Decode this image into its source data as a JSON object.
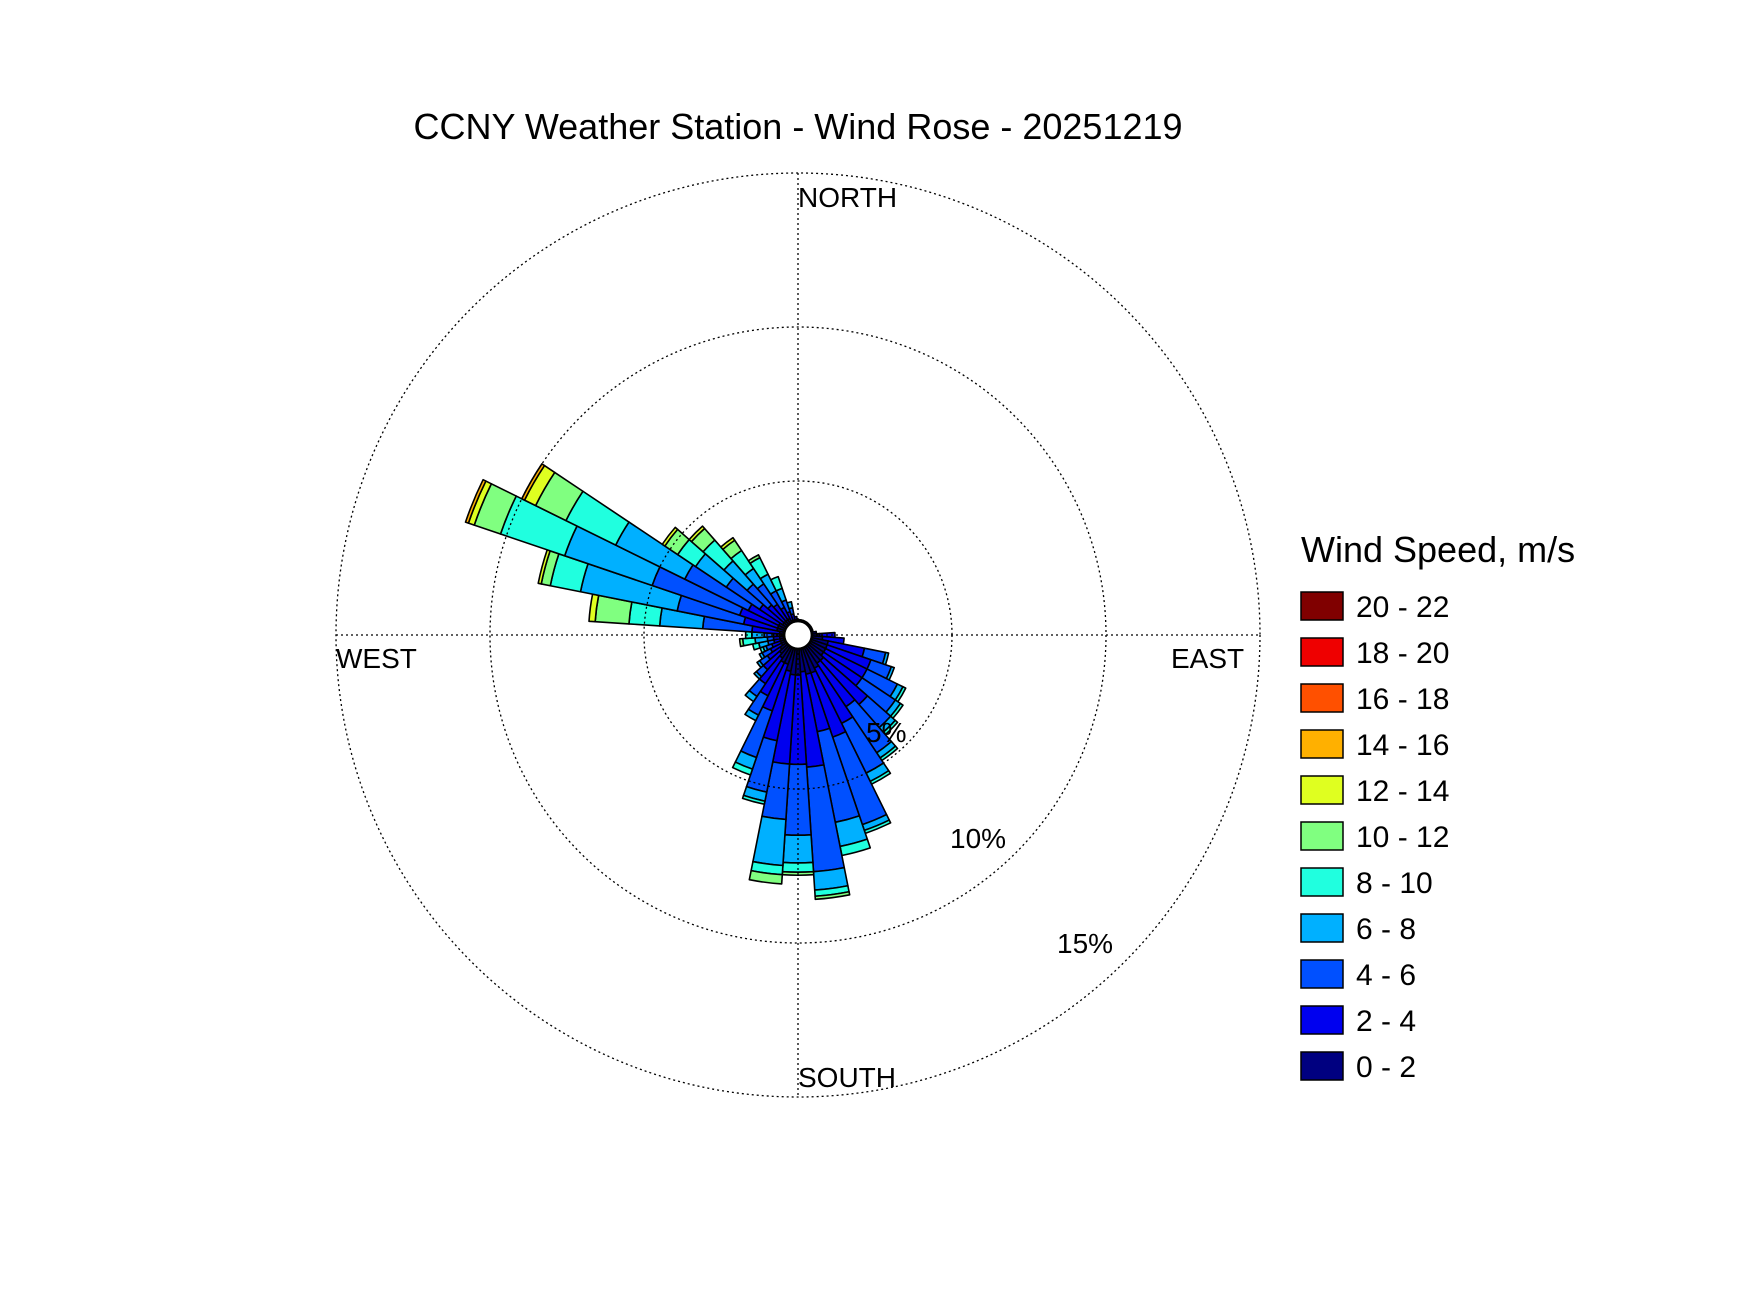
{
  "chart_data": {
    "type": "wind-rose",
    "title": "CCNY Weather Station - Wind Rose - 20251219",
    "directions": [
      "NORTH",
      "EAST",
      "SOUTH",
      "WEST"
    ],
    "radial_rings": [
      5,
      10,
      15
    ],
    "radial_ring_labels": [
      "5%",
      "10%",
      "15%"
    ],
    "radial_max": 15,
    "radial_units": "%",
    "grid": true,
    "legend_title": "Wind Speed, m/s",
    "legend_position": "right",
    "speed_bins": [
      {
        "label": "20 - 22",
        "color": "#800000"
      },
      {
        "label": "18 - 20",
        "color": "#ef0000"
      },
      {
        "label": "16 - 18",
        "color": "#ff5000"
      },
      {
        "label": "14 - 16",
        "color": "#ffb000"
      },
      {
        "label": "12 - 14",
        "color": "#dfff20"
      },
      {
        "label": "10 - 12",
        "color": "#80ff80"
      },
      {
        "label": "8 - 10",
        "color": "#20ffdf"
      },
      {
        "label": "6 - 8",
        "color": "#00b0ff"
      },
      {
        "label": "4 - 6",
        "color": "#0050ff"
      },
      {
        "label": "2 - 4",
        "color": "#0000ef"
      },
      {
        "label": "0 - 2",
        "color": "#000080"
      }
    ],
    "sector_width_deg": 7.5,
    "sectors": [
      {
        "direction_deg": 0,
        "cumulative_pct": [
          0.5
        ]
      },
      {
        "direction_deg": 7.5,
        "cumulative_pct": [
          0.5
        ]
      },
      {
        "direction_deg": 15,
        "cumulative_pct": [
          0.5
        ]
      },
      {
        "direction_deg": 22.5,
        "cumulative_pct": [
          0.5
        ]
      },
      {
        "direction_deg": 30,
        "cumulative_pct": [
          0.5
        ]
      },
      {
        "direction_deg": 37.5,
        "cumulative_pct": [
          0.5
        ]
      },
      {
        "direction_deg": 45,
        "cumulative_pct": [
          0.5
        ]
      },
      {
        "direction_deg": 52.5,
        "cumulative_pct": [
          0.5
        ]
      },
      {
        "direction_deg": 60,
        "cumulative_pct": [
          0.5
        ]
      },
      {
        "direction_deg": 67.5,
        "cumulative_pct": [
          0.5
        ]
      },
      {
        "direction_deg": 75,
        "cumulative_pct": [
          0.5
        ]
      },
      {
        "direction_deg": 82.5,
        "cumulative_pct": [
          0.6
        ]
      },
      {
        "direction_deg": 90,
        "cumulative_pct": [
          0.7,
          1.2
        ]
      },
      {
        "direction_deg": 97.5,
        "cumulative_pct": [
          0.8,
          1.5
        ]
      },
      {
        "direction_deg": 105,
        "cumulative_pct": [
          1.0,
          2.2,
          2.9,
          3.0
        ]
      },
      {
        "direction_deg": 112.5,
        "cumulative_pct": [
          1.0,
          2.5,
          3.2,
          3.3
        ]
      },
      {
        "direction_deg": 120,
        "cumulative_pct": [
          1.0,
          2.5,
          3.6,
          3.8,
          3.9
        ]
      },
      {
        "direction_deg": 127.5,
        "cumulative_pct": [
          1.0,
          2.5,
          3.8,
          4.0,
          4.1
        ]
      },
      {
        "direction_deg": 135,
        "cumulative_pct": [
          1.1,
          3.0,
          4.0,
          4.2,
          4.3
        ]
      },
      {
        "direction_deg": 142.5,
        "cumulative_pct": [
          1.1,
          2.8,
          4.6,
          4.8,
          4.9
        ]
      },
      {
        "direction_deg": 150,
        "cumulative_pct": [
          1.2,
          3.2,
          5.0,
          5.3,
          5.4
        ]
      },
      {
        "direction_deg": 157.5,
        "cumulative_pct": [
          1.3,
          3.5,
          6.5,
          6.7,
          6.8
        ]
      },
      {
        "direction_deg": 165,
        "cumulative_pct": [
          1.3,
          3.2,
          6.2,
          7.0,
          7.3
        ]
      },
      {
        "direction_deg": 172.5,
        "cumulative_pct": [
          1.2,
          4.3,
          7.7,
          8.3,
          8.5,
          8.6
        ]
      },
      {
        "direction_deg": 180,
        "cumulative_pct": [
          1.3,
          4.2,
          6.5,
          7.4,
          7.7,
          7.8
        ]
      },
      {
        "direction_deg": 187.5,
        "cumulative_pct": [
          1.3,
          4.2,
          6.0,
          7.5,
          7.8,
          8.1
        ]
      },
      {
        "direction_deg": 195,
        "cumulative_pct": [
          1.2,
          3.5,
          5.2,
          5.5,
          5.6
        ]
      },
      {
        "direction_deg": 202.5,
        "cumulative_pct": [
          1.0,
          2.6,
          4.2,
          4.6,
          4.8
        ]
      },
      {
        "direction_deg": 210,
        "cumulative_pct": [
          1.0,
          2.2,
          2.9,
          3.1
        ]
      },
      {
        "direction_deg": 217.5,
        "cumulative_pct": [
          0.9,
          1.9,
          2.4,
          2.6
        ]
      },
      {
        "direction_deg": 225,
        "cumulative_pct": [
          0.8,
          1.5,
          1.8,
          1.9
        ]
      },
      {
        "direction_deg": 232.5,
        "cumulative_pct": [
          0.7,
          1.2,
          1.5,
          1.6
        ]
      },
      {
        "direction_deg": 240,
        "cumulative_pct": [
          0.6,
          1.0,
          1.3,
          1.4
        ]
      },
      {
        "direction_deg": 247.5,
        "cumulative_pct": [
          0.6,
          0.9,
          1.1,
          1.2,
          1.3
        ]
      },
      {
        "direction_deg": 255,
        "cumulative_pct": [
          0.6,
          0.8,
          1.0,
          1.3,
          1.5
        ]
      },
      {
        "direction_deg": 262.5,
        "cumulative_pct": [
          0.6,
          0.8,
          1.0,
          1.4,
          1.8,
          1.9
        ]
      },
      {
        "direction_deg": 270,
        "cumulative_pct": [
          0.6,
          0.8,
          1.1,
          1.5,
          1.7
        ]
      },
      {
        "direction_deg": 277.5,
        "cumulative_pct": [
          0.6,
          1.5,
          3.1,
          4.5,
          5.5,
          6.6,
          6.8
        ]
      },
      {
        "direction_deg": 285,
        "cumulative_pct": [
          0.7,
          1.8,
          4.0,
          7.2,
          8.2,
          8.5,
          8.6
        ]
      },
      {
        "direction_deg": 292.5,
        "cumulative_pct": [
          0.7,
          2.0,
          5.0,
          8.0,
          10.2,
          11.1,
          11.3,
          11.4
        ]
      },
      {
        "direction_deg": 300,
        "cumulative_pct": [
          0.7,
          1.8,
          4.1,
          6.6,
          8.4,
          9.5,
          9.9,
          10.0
        ]
      },
      {
        "direction_deg": 307.5,
        "cumulative_pct": [
          0.6,
          1.5,
          2.8,
          4.0,
          4.7,
          5.2,
          5.3
        ]
      },
      {
        "direction_deg": 315,
        "cumulative_pct": [
          0.6,
          1.3,
          2.2,
          3.2,
          4.1,
          4.6,
          4.7
        ]
      },
      {
        "direction_deg": 322.5,
        "cumulative_pct": [
          0.6,
          1.2,
          2.0,
          2.6,
          3.3,
          3.7,
          3.8
        ]
      },
      {
        "direction_deg": 330,
        "cumulative_pct": [
          0.6,
          1.0,
          1.6,
          2.2,
          2.8,
          2.9
        ]
      },
      {
        "direction_deg": 337.5,
        "cumulative_pct": [
          0.5,
          0.8,
          1.2,
          1.6,
          2.0
        ]
      },
      {
        "direction_deg": 345,
        "cumulative_pct": [
          0.5,
          0.7,
          0.9,
          1.1
        ]
      },
      {
        "direction_deg": 352.5,
        "cumulative_pct": [
          0.5,
          0.6
        ]
      }
    ],
    "hub_pct": 0.45
  }
}
